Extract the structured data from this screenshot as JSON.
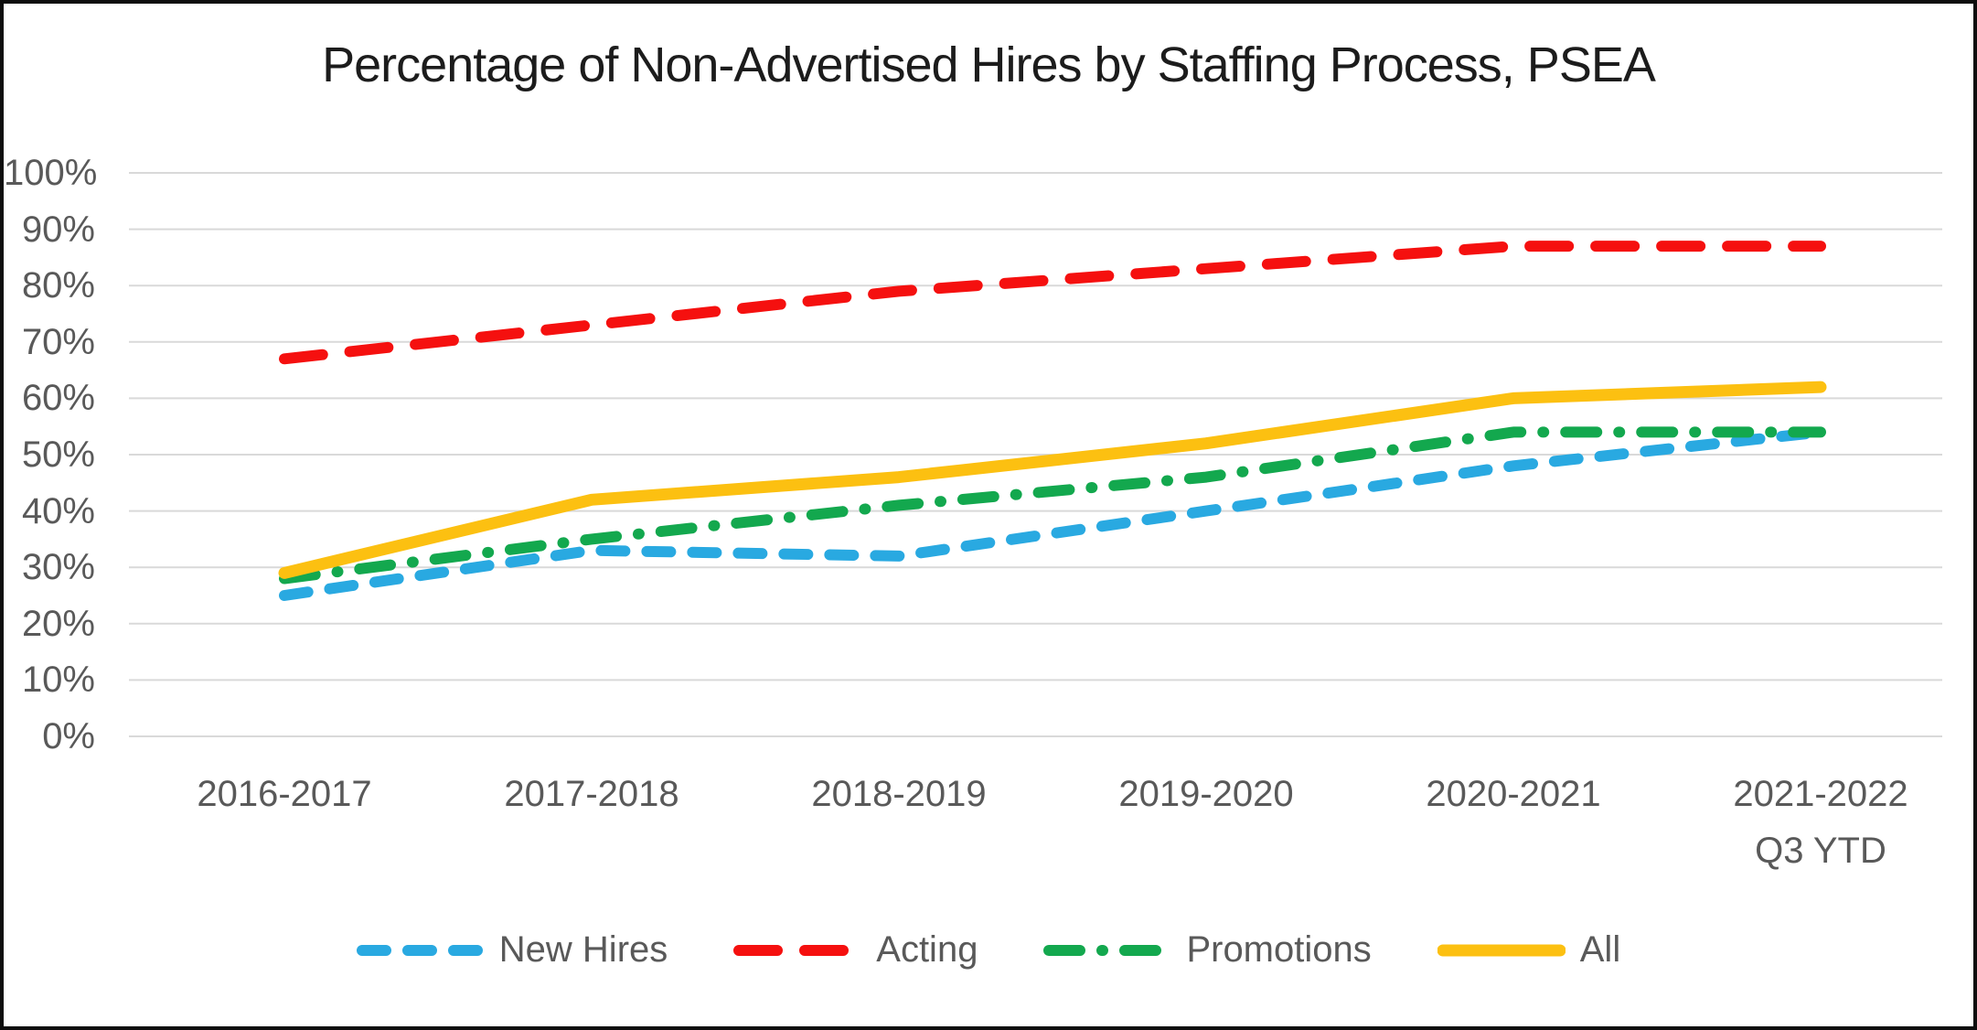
{
  "title": "Percentage of Non-Advertised Hires by Staffing Process, PSEA",
  "chart_data": {
    "type": "line",
    "categories": [
      "2016-2017",
      "2017-2018",
      "2018-2019",
      "2019-2020",
      "2020-2021",
      "2021-2022\nQ3 YTD"
    ],
    "series": [
      {
        "name": "New Hires",
        "values": [
          25,
          33,
          32,
          40,
          48,
          54
        ],
        "color": "#29A9E1",
        "style": "dashed"
      },
      {
        "name": "Acting",
        "values": [
          67,
          73,
          79,
          83,
          87,
          87
        ],
        "color": "#F5100F",
        "style": "dashed-long"
      },
      {
        "name": "Promotions",
        "values": [
          28,
          35,
          41,
          46,
          54,
          54
        ],
        "color": "#13A84E",
        "style": "dash-dot"
      },
      {
        "name": "All",
        "values": [
          29,
          42,
          46,
          52,
          60,
          62
        ],
        "color": "#FCC011",
        "style": "solid"
      }
    ],
    "xlabel": "",
    "ylabel": "",
    "ylim": [
      0,
      100
    ],
    "y_tick_step": 10,
    "y_tick_suffix": "%",
    "grid": "horizontal",
    "legend_position": "bottom"
  },
  "colors": {
    "grid": "#D9D9D9",
    "axis_text": "#595959",
    "title_text": "#1C1C1C",
    "background": "#FFFFFF",
    "border": "#0D0D0D"
  }
}
